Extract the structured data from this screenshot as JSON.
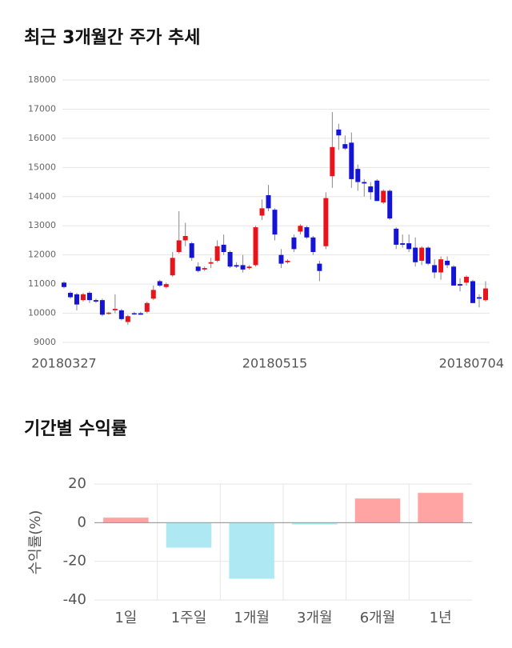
{
  "chart_data": [
    {
      "type": "candlestick",
      "title": "최근 3개월간 주가 추세",
      "categories": [
        "20180327",
        null,
        null,
        null,
        null,
        null,
        null,
        null,
        null,
        null,
        null,
        null,
        null,
        null,
        null,
        null,
        null,
        null,
        null,
        null,
        null,
        null,
        null,
        null,
        null,
        null,
        null,
        null,
        null,
        null,
        null,
        null,
        null,
        "20180515",
        null,
        null,
        null,
        null,
        null,
        null,
        null,
        null,
        null,
        null,
        null,
        null,
        null,
        null,
        null,
        null,
        null,
        null,
        null,
        null,
        null,
        null,
        null,
        null,
        null,
        null,
        null,
        null,
        null,
        null,
        null,
        null,
        "20180704"
      ],
      "open": [
        11050,
        10700,
        10650,
        10450,
        10700,
        10450,
        10450,
        9980,
        10100,
        10100,
        9700,
        10000,
        10000,
        10050,
        10500,
        11100,
        10900,
        11300,
        12100,
        12500,
        12400,
        11600,
        11500,
        11700,
        11800,
        12350,
        12100,
        11650,
        11650,
        11550,
        11650,
        13350,
        14050,
        13550,
        12000,
        11750,
        12600,
        12800,
        12950,
        12600,
        11700,
        12300,
        14700,
        16300,
        15800,
        15850,
        14950,
        14500,
        14350,
        14550,
        13800,
        14200,
        12900,
        12400,
        12400,
        12250,
        11800,
        12250,
        11650,
        11400,
        11800,
        11600,
        11000,
        11050,
        11100,
        10550,
        10450
      ],
      "high": [
        11100,
        10750,
        10700,
        10700,
        10750,
        10500,
        10500,
        10050,
        10650,
        10150,
        9950,
        10050,
        10050,
        10400,
        10950,
        11150,
        11050,
        12100,
        13500,
        13100,
        12450,
        11750,
        11600,
        11900,
        12500,
        12700,
        12150,
        11750,
        12000,
        11650,
        13000,
        13900,
        14400,
        13600,
        12200,
        11850,
        12700,
        13050,
        13000,
        12650,
        11800,
        14150,
        16900,
        16500,
        16100,
        16200,
        15100,
        14600,
        14500,
        14600,
        14250,
        14250,
        12950,
        12700,
        12700,
        12600,
        12300,
        12300,
        11850,
        11950,
        11950,
        11650,
        11200,
        11300,
        11150,
        10650,
        11100
      ],
      "low": [
        10850,
        10500,
        10100,
        10400,
        10350,
        10350,
        9900,
        9950,
        10000,
        9750,
        9600,
        9950,
        9950,
        10000,
        10450,
        10900,
        10850,
        11250,
        12050,
        12300,
        11800,
        11400,
        11450,
        11550,
        11750,
        12000,
        11550,
        11550,
        11400,
        11500,
        11600,
        13200,
        13500,
        12500,
        11550,
        11700,
        12100,
        12700,
        12550,
        12000,
        11100,
        12200,
        14300,
        15600,
        15600,
        14300,
        14200,
        14000,
        13900,
        13850,
        13750,
        13200,
        12200,
        12250,
        12100,
        11600,
        11650,
        11650,
        11200,
        11150,
        11550,
        10950,
        10750,
        10950,
        10350,
        10200,
        10400
      ],
      "close": [
        10900,
        10550,
        10300,
        10650,
        10450,
        10400,
        9950,
        10020,
        10150,
        9800,
        9900,
        9980,
        9950,
        10350,
        10800,
        10950,
        11000,
        11900,
        12500,
        12650,
        11900,
        11450,
        11550,
        11750,
        12300,
        12100,
        11600,
        11600,
        11500,
        11600,
        12950,
        13600,
        13600,
        12700,
        11700,
        11800,
        12200,
        13000,
        12600,
        12100,
        11450,
        13950,
        15700,
        16100,
        15650,
        14600,
        14500,
        14450,
        14150,
        13850,
        14200,
        13250,
        12350,
        12350,
        12200,
        11750,
        12250,
        11700,
        11400,
        11850,
        11650,
        10950,
        10950,
        11250,
        10350,
        10500,
        10850
      ],
      "up_color": "#e8141c",
      "down_color": "#1414d2",
      "ylim": [
        9000,
        18000
      ],
      "yticks": [
        9000,
        10000,
        11000,
        12000,
        13000,
        14000,
        15000,
        16000,
        17000,
        18000
      ],
      "grid": true
    },
    {
      "type": "bar",
      "title": "기간별 수익률",
      "y_label": "수익률(%)",
      "categories": [
        "1일",
        "1주일",
        "1개월",
        "3개월",
        "6개월",
        "1년"
      ],
      "values": [
        2.5,
        -12.8,
        -28.9,
        -0.8,
        12.4,
        15.3
      ],
      "colors": [
        "#ffa3a3",
        "#aee9f3",
        "#aee9f3",
        "#aee9f3",
        "#ffa3a3",
        "#ffa3a3"
      ],
      "ylim": [
        -40,
        20
      ],
      "yticks": [
        -40,
        -20,
        0,
        20
      ],
      "grid": true
    }
  ]
}
